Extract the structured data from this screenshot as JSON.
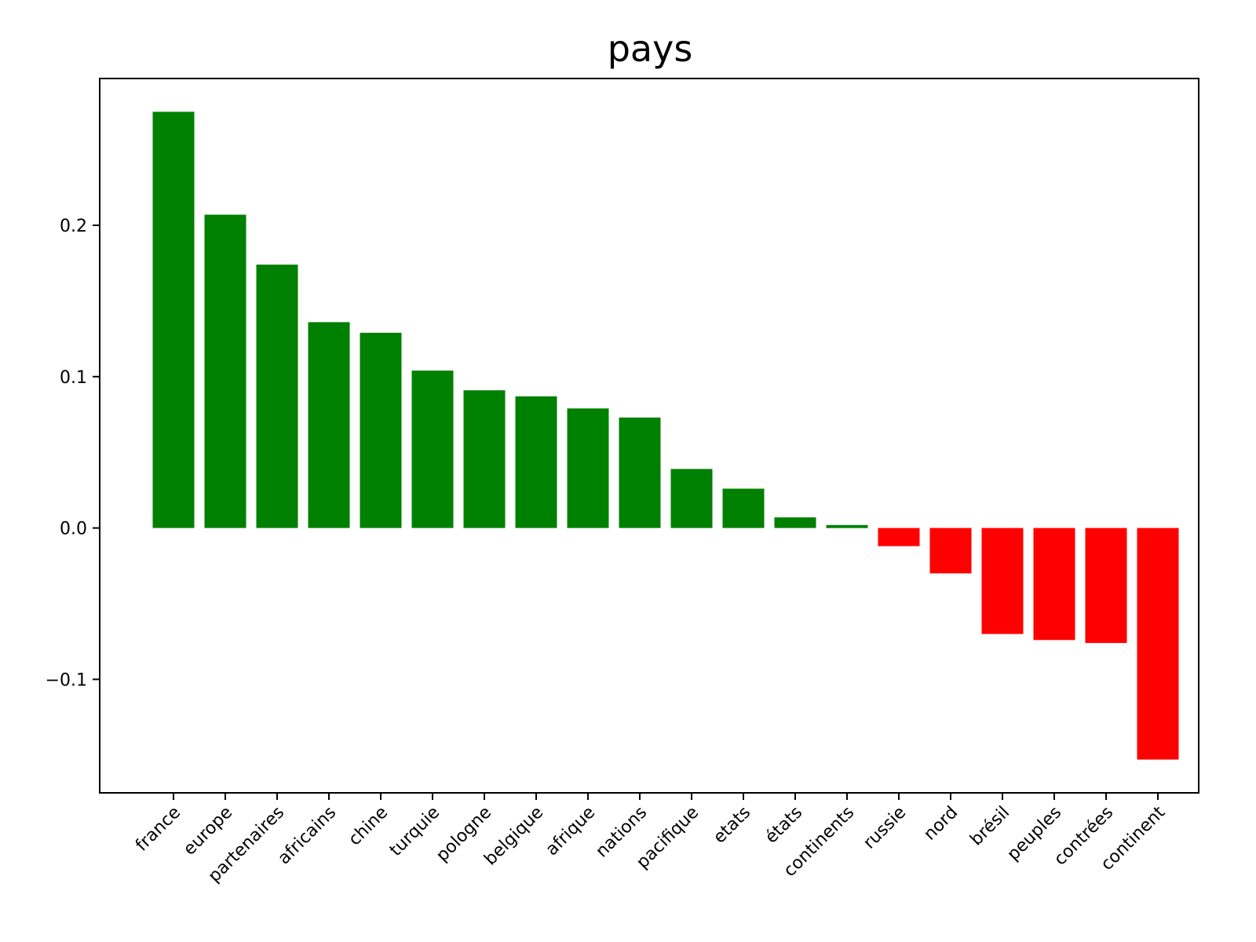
{
  "chart_data": {
    "type": "bar",
    "title": "pays",
    "xlabel": "",
    "ylabel": "",
    "categories": [
      "france",
      "europe",
      "partenaires",
      "africains",
      "chine",
      "turquie",
      "pologne",
      "belgique",
      "afrique",
      "nations",
      "pacifique",
      "etats",
      "états",
      "continents",
      "russie",
      "nord",
      "brésil",
      "peuples",
      "contrées",
      "continent"
    ],
    "values": [
      0.275,
      0.207,
      0.174,
      0.136,
      0.129,
      0.104,
      0.091,
      0.087,
      0.079,
      0.073,
      0.039,
      0.026,
      0.007,
      0.002,
      -0.012,
      -0.03,
      -0.07,
      -0.074,
      -0.076,
      -0.153
    ],
    "ylim": [
      -0.175,
      0.297
    ],
    "yticks": [
      -0.1,
      0.0,
      0.1,
      0.2
    ],
    "ytick_labels": [
      "−0.1",
      "0.0",
      "0.1",
      "0.2"
    ],
    "colors": {
      "positive": "#008000",
      "negative": "#ff0000"
    },
    "grid": false,
    "legend": "none"
  }
}
